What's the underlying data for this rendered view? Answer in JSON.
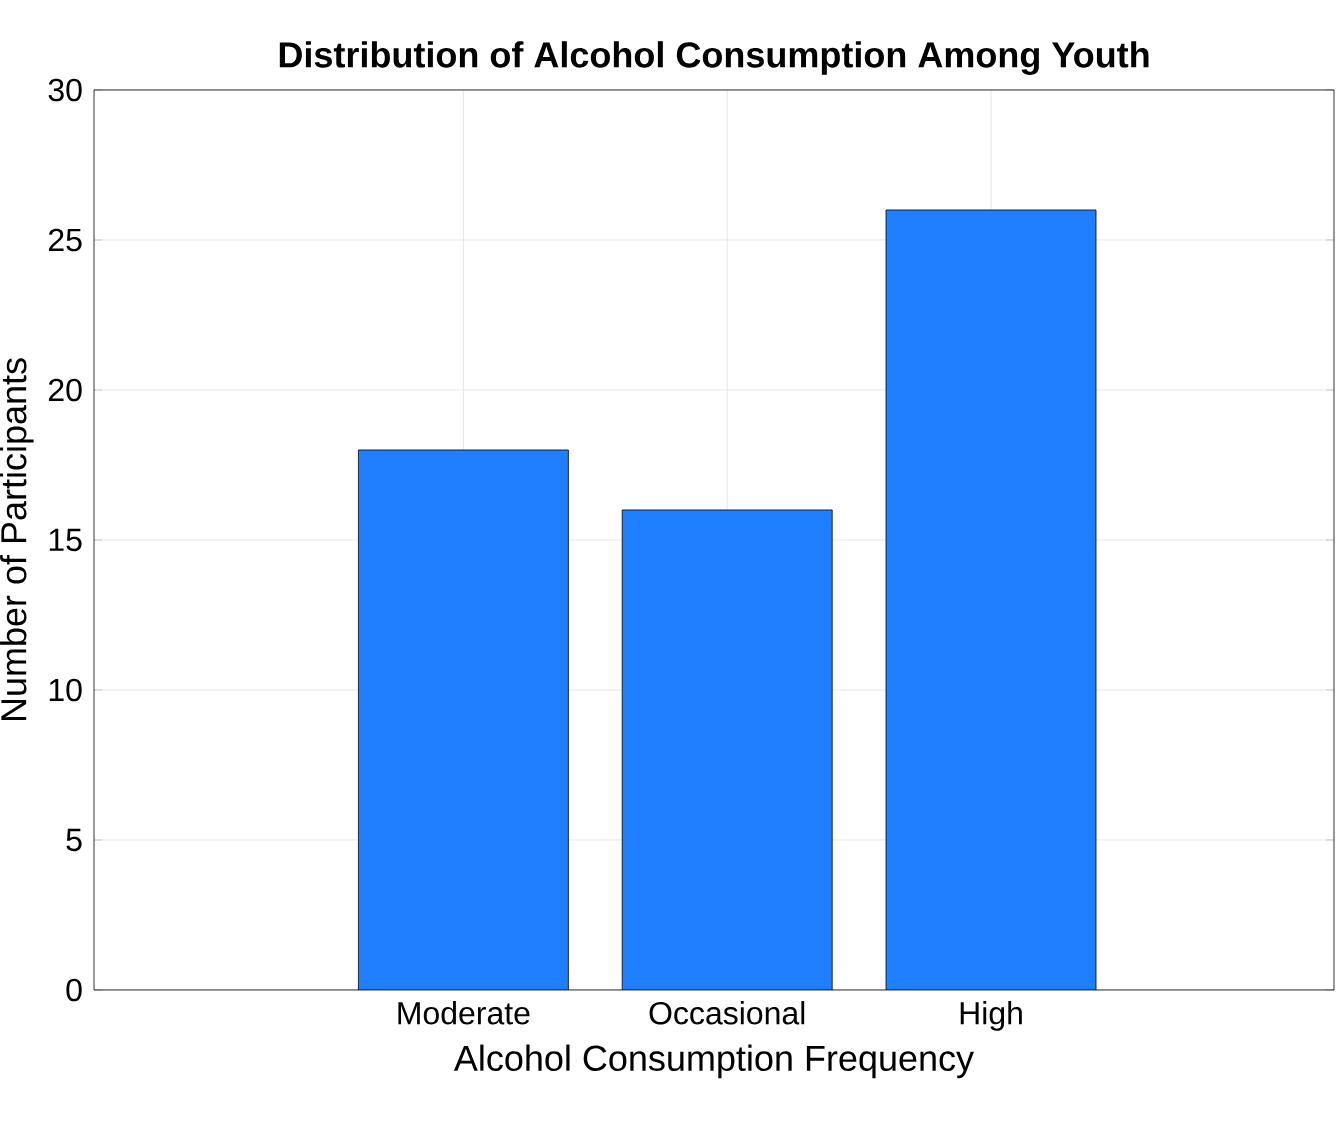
{
  "chart_data": {
    "type": "bar",
    "title": "Distribution of Alcohol Consumption Among Youth",
    "xlabel": "Alcohol Consumption Frequency",
    "ylabel": "Number of Participants",
    "categories": [
      "Moderate",
      "Occasional",
      "High"
    ],
    "values": [
      18,
      16,
      26
    ],
    "color": "#1f7fff",
    "ylim": [
      0,
      30
    ],
    "yticks": [
      0,
      5,
      10,
      15,
      20,
      25,
      30
    ],
    "grid": true
  }
}
